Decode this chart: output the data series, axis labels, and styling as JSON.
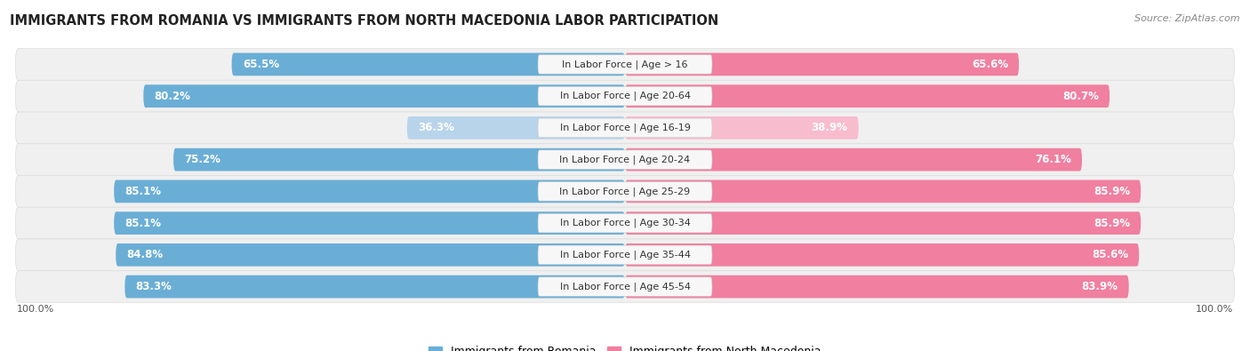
{
  "title": "IMMIGRANTS FROM ROMANIA VS IMMIGRANTS FROM NORTH MACEDONIA LABOR PARTICIPATION",
  "source": "Source: ZipAtlas.com",
  "categories": [
    "In Labor Force | Age > 16",
    "In Labor Force | Age 20-64",
    "In Labor Force | Age 16-19",
    "In Labor Force | Age 20-24",
    "In Labor Force | Age 25-29",
    "In Labor Force | Age 30-34",
    "In Labor Force | Age 35-44",
    "In Labor Force | Age 45-54"
  ],
  "romania_values": [
    65.5,
    80.2,
    36.3,
    75.2,
    85.1,
    85.1,
    84.8,
    83.3
  ],
  "macedonia_values": [
    65.6,
    80.7,
    38.9,
    76.1,
    85.9,
    85.9,
    85.6,
    83.9
  ],
  "romania_color": "#6aaed6",
  "macedonia_color": "#f07fa0",
  "romania_color_light": "#b8d4ea",
  "macedonia_color_light": "#f8bccf",
  "row_bg_color": "#f0f0f0",
  "row_border_color": "#dddddd",
  "label_bg_color": "#f7f7f7",
  "max_value": 100.0,
  "legend_romania": "Immigrants from Romania",
  "legend_macedonia": "Immigrants from North Macedonia",
  "title_fontsize": 10.5,
  "label_fontsize": 8.0,
  "value_fontsize": 8.5,
  "source_fontsize": 8.0,
  "bg_color": "#ffffff"
}
